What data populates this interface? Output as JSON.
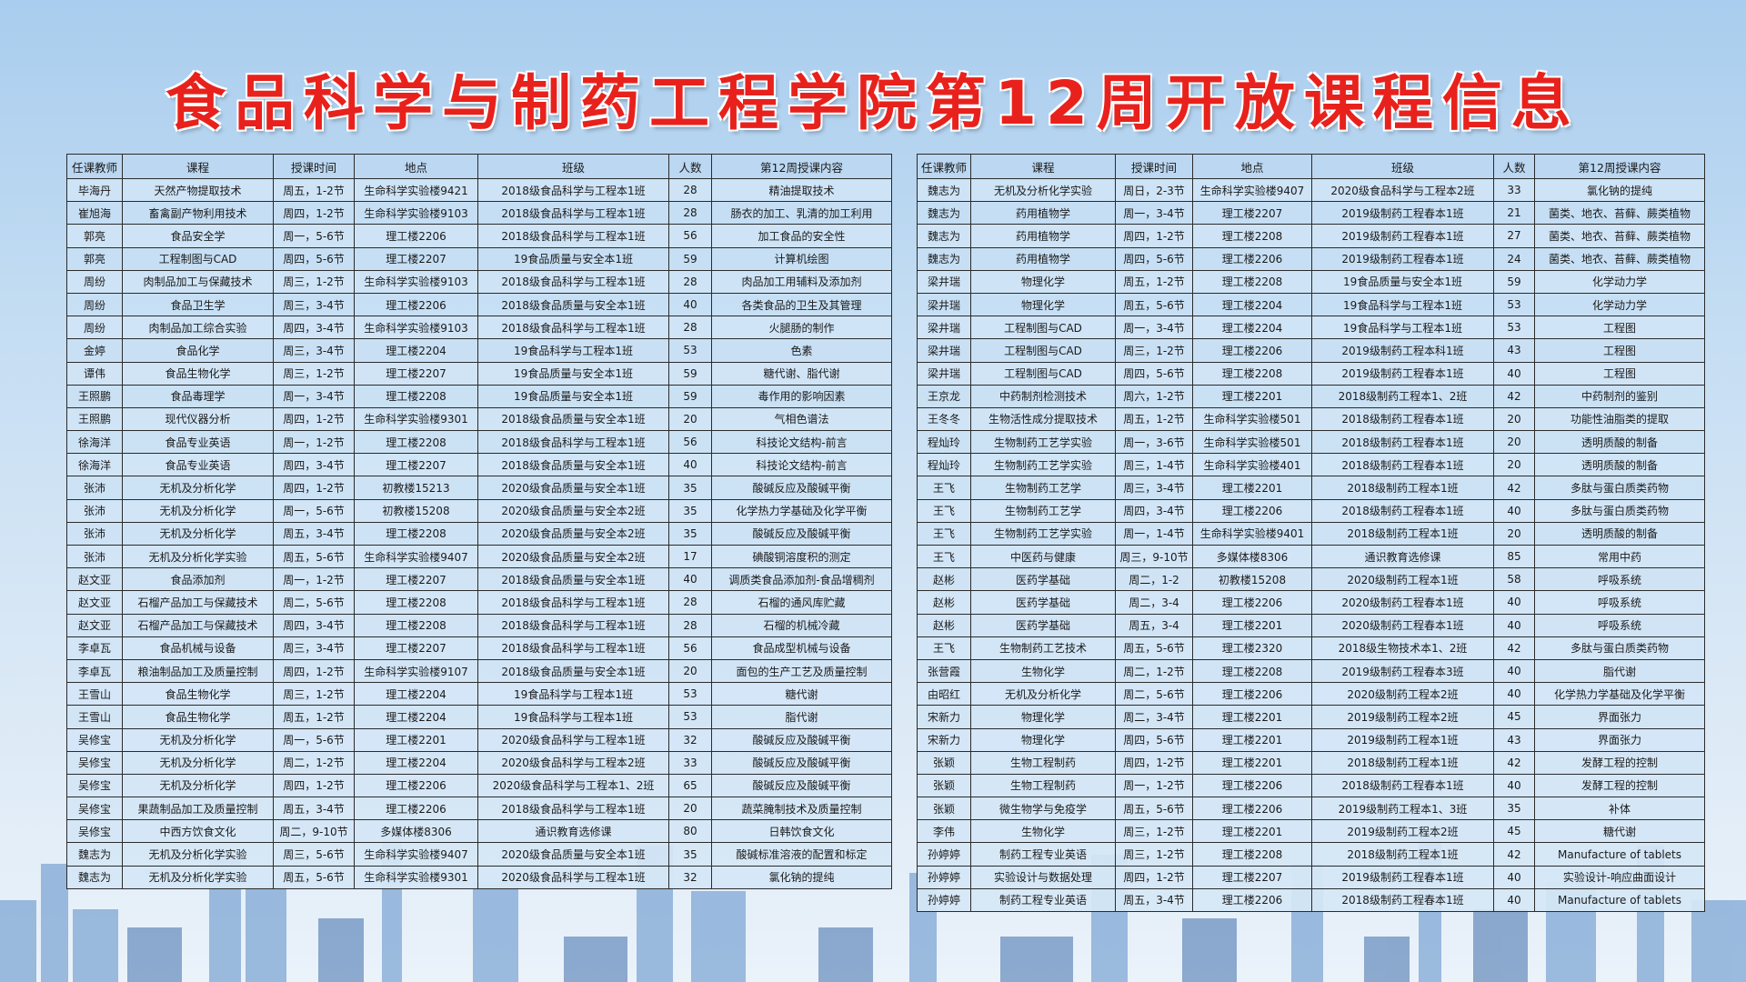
{
  "title": "食品科学与制药工程学院第12周开放课程信息",
  "colors": {
    "title": "#e8211c",
    "background": "#c6def3",
    "table_border": "#2b2b2b"
  },
  "columns": [
    "任课教师",
    "课程",
    "授课时间",
    "地点",
    "班级",
    "人数",
    "第12周授课内容"
  ],
  "left_table": [
    [
      "毕海丹",
      "天然产物提取技术",
      "周五，1-2节",
      "生命科学实验楼9421",
      "2018级食品科学与工程本1班",
      "28",
      "精油提取技术"
    ],
    [
      "崔旭海",
      "畜禽副产物利用技术",
      "周四，1-2节",
      "生命科学实验楼9103",
      "2018级食品科学与工程本1班",
      "28",
      "肠衣的加工、乳清的加工利用"
    ],
    [
      "郭亮",
      "食品安全学",
      "周一，5-6节",
      "理工楼2206",
      "2018级食品科学与工程本1班",
      "56",
      "加工食品的安全性"
    ],
    [
      "郭亮",
      "工程制图与CAD",
      "周四，5-6节",
      "理工楼2207",
      "19食品质量与安全本1班",
      "59",
      "计算机绘图"
    ],
    [
      "周纷",
      "肉制品加工与保藏技术",
      "周三，1-2节",
      "生命科学实验楼9103",
      "2018级食品科学与工程本1班",
      "28",
      "肉品加工用辅料及添加剂"
    ],
    [
      "周纷",
      "食品卫生学",
      "周三，3-4节",
      "理工楼2206",
      "2018级食品质量与安全本1班",
      "40",
      "各类食品的卫生及其管理"
    ],
    [
      "周纷",
      "肉制品加工综合实验",
      "周四，3-4节",
      "生命科学实验楼9103",
      "2018级食品科学与工程本1班",
      "28",
      "火腿肠的制作"
    ],
    [
      "金婷",
      "食品化学",
      "周三，3-4节",
      "理工楼2204",
      "19食品科学与工程本1班",
      "53",
      "色素"
    ],
    [
      "谭伟",
      "食品生物化学",
      "周三，1-2节",
      "理工楼2207",
      "19食品质量与安全本1班",
      "59",
      "糖代谢、脂代谢"
    ],
    [
      "王照鹏",
      "食品毒理学",
      "周一，3-4节",
      "理工楼2208",
      "19食品质量与安全本1班",
      "59",
      "毒作用的影响因素"
    ],
    [
      "王照鹏",
      "现代仪器分析",
      "周四，1-2节",
      "生命科学实验楼9301",
      "2018级食品质量与安全本1班",
      "20",
      "气相色谱法"
    ],
    [
      "徐海洋",
      "食品专业英语",
      "周一，1-2节",
      "理工楼2208",
      "2018级食品科学与工程本1班",
      "56",
      "科技论文结构-前言"
    ],
    [
      "徐海洋",
      "食品专业英语",
      "周四，3-4节",
      "理工楼2207",
      "2018级食品质量与安全本1班",
      "40",
      "科技论文结构-前言"
    ],
    [
      "张沛",
      "无机及分析化学",
      "周四，1-2节",
      "初教楼15213",
      "2020级食品质量与安全本1班",
      "35",
      "酸碱反应及酸碱平衡"
    ],
    [
      "张沛",
      "无机及分析化学",
      "周一，5-6节",
      "初教楼15208",
      "2020级食品质量与安全本2班",
      "35",
      "化学热力学基础及化学平衡"
    ],
    [
      "张沛",
      "无机及分析化学",
      "周五，3-4节",
      "理工楼2208",
      "2020级食品质量与安全本2班",
      "35",
      "酸碱反应及酸碱平衡"
    ],
    [
      "张沛",
      "无机及分析化学实验",
      "周五，5-6节",
      "生命科学实验楼9407",
      "2020级食品质量与安全本2班",
      "17",
      "碘酸铜溶度积的测定"
    ],
    [
      "赵文亚",
      "食品添加剂",
      "周一，1-2节",
      "理工楼2207",
      "2018级食品质量与安全本1班",
      "40",
      "调质类食品添加剂-食品增稠剂"
    ],
    [
      "赵文亚",
      "石榴产品加工与保藏技术",
      "周二，5-6节",
      "理工楼2208",
      "2018级食品科学与工程本1班",
      "28",
      "石榴的通风库贮藏"
    ],
    [
      "赵文亚",
      "石榴产品加工与保藏技术",
      "周四，3-4节",
      "理工楼2208",
      "2018级食品科学与工程本1班",
      "28",
      "石榴的机械冷藏"
    ],
    [
      "李卓瓦",
      "食品机械与设备",
      "周三，3-4节",
      "理工楼2207",
      "2018级食品科学与工程本1班",
      "56",
      "食品成型机械与设备"
    ],
    [
      "李卓瓦",
      "粮油制品加工及质量控制",
      "周四，1-2节",
      "生命科学实验楼9107",
      "2018级食品质量与安全本1班",
      "20",
      "面包的生产工艺及质量控制"
    ],
    [
      "王雪山",
      "食品生物化学",
      "周三，1-2节",
      "理工楼2204",
      "19食品科学与工程本1班",
      "53",
      "糖代谢"
    ],
    [
      "王雪山",
      "食品生物化学",
      "周五，1-2节",
      "理工楼2204",
      "19食品科学与工程本1班",
      "53",
      "脂代谢"
    ],
    [
      "吴修宝",
      "无机及分析化学",
      "周一，5-6节",
      "理工楼2201",
      "2020级食品科学与工程本1班",
      "32",
      "酸碱反应及酸碱平衡"
    ],
    [
      "吴修宝",
      "无机及分析化学",
      "周二，1-2节",
      "理工楼2204",
      "2020级食品科学与工程本2班",
      "33",
      "酸碱反应及酸碱平衡"
    ],
    [
      "吴修宝",
      "无机及分析化学",
      "周四，1-2节",
      "理工楼2206",
      "2020级食品科学与工程本1、2班",
      "65",
      "酸碱反应及酸碱平衡"
    ],
    [
      "吴修宝",
      "果蔬制品加工及质量控制",
      "周五，3-4节",
      "理工楼2206",
      "2018级食品科学与工程本1班",
      "20",
      "蔬菜腌制技术及质量控制"
    ],
    [
      "吴修宝",
      "中西方饮食文化",
      "周二，9-10节",
      "多媒体楼8306",
      "通识教育选修课",
      "80",
      "日韩饮食文化"
    ],
    [
      "魏志为",
      "无机及分析化学实验",
      "周三，5-6节",
      "生命科学实验楼9407",
      "2020级食品质量与安全本1班",
      "35",
      "酸碱标准溶液的配置和标定"
    ],
    [
      "魏志为",
      "无机及分析化学实验",
      "周五，5-6节",
      "生命科学实验楼9301",
      "2020级食品科学与工程本1班",
      "32",
      "氯化钠的提纯"
    ]
  ],
  "right_table": [
    [
      "魏志为",
      "无机及分析化学实验",
      "周日，2-3节",
      "生命科学实验楼9407",
      "2020级食品科学与工程本2班",
      "33",
      "氯化钠的提纯"
    ],
    [
      "魏志为",
      "药用植物学",
      "周一，3-4节",
      "理工楼2207",
      "2019级制药工程春本1班",
      "21",
      "菌类、地衣、苔藓、蕨类植物"
    ],
    [
      "魏志为",
      "药用植物学",
      "周四，1-2节",
      "理工楼2208",
      "2019级制药工程春本1班",
      "27",
      "菌类、地衣、苔藓、蕨类植物"
    ],
    [
      "魏志为",
      "药用植物学",
      "周四，5-6节",
      "理工楼2206",
      "2019级制药工程春本1班",
      "24",
      "菌类、地衣、苔藓、蕨类植物"
    ],
    [
      "梁井瑞",
      "物理化学",
      "周五，1-2节",
      "理工楼2208",
      "19食品质量与安全本1班",
      "59",
      "化学动力学"
    ],
    [
      "梁井瑞",
      "物理化学",
      "周五，5-6节",
      "理工楼2204",
      "19食品科学与工程本1班",
      "53",
      "化学动力学"
    ],
    [
      "梁井瑞",
      "工程制图与CAD",
      "周一，3-4节",
      "理工楼2204",
      "19食品科学与工程本1班",
      "53",
      "工程图"
    ],
    [
      "梁井瑞",
      "工程制图与CAD",
      "周三，1-2节",
      "理工楼2206",
      "2019级制药工程本科1班",
      "43",
      "工程图"
    ],
    [
      "梁井瑞",
      "工程制图与CAD",
      "周四，5-6节",
      "理工楼2208",
      "2019级制药工程春本1班",
      "40",
      "工程图"
    ],
    [
      "王京龙",
      "中药制剂检测技术",
      "周六，1-2节",
      "理工楼2201",
      "2018级制药工程本1、2班",
      "42",
      "中药制剂的鉴别"
    ],
    [
      "王冬冬",
      "生物活性成分提取技术",
      "周五，1-2节",
      "生命科学实验楼501",
      "2018级制药工程春本1班",
      "20",
      "功能性油脂类的提取"
    ],
    [
      "程灿玲",
      "生物制药工艺学实验",
      "周一，3-6节",
      "生命科学实验楼501",
      "2018级制药工程春本1班",
      "20",
      "透明质酸的制备"
    ],
    [
      "程灿玲",
      "生物制药工艺学实验",
      "周三，1-4节",
      "生命科学实验楼401",
      "2018级制药工程春本1班",
      "20",
      "透明质酸的制备"
    ],
    [
      "王飞",
      "生物制药工艺学",
      "周三，3-4节",
      "理工楼2201",
      "2018级制药工程本1班",
      "42",
      "多肽与蛋白质类药物"
    ],
    [
      "王飞",
      "生物制药工艺学",
      "周四，3-4节",
      "理工楼2206",
      "2018级制药工程春本1班",
      "40",
      "多肽与蛋白质类药物"
    ],
    [
      "王飞",
      "生物制药工艺学实验",
      "周一，1-4节",
      "生命科学实验楼9401",
      "2018级制药工程本1班",
      "20",
      "透明质酸的制备"
    ],
    [
      "王飞",
      "中医药与健康",
      "周三，9-10节",
      "多媒体楼8306",
      "通识教育选修课",
      "85",
      "常用中药"
    ],
    [
      "赵彬",
      "医药学基础",
      "周二，1-2",
      "初教楼15208",
      "2020级制药工程本1班",
      "58",
      "呼吸系统"
    ],
    [
      "赵彬",
      "医药学基础",
      "周二，3-4",
      "理工楼2206",
      "2020级制药工程春本1班",
      "40",
      "呼吸系统"
    ],
    [
      "赵彬",
      "医药学基础",
      "周五，3-4",
      "理工楼2201",
      "2020级制药工程春本1班",
      "40",
      "呼吸系统"
    ],
    [
      "王飞",
      "生物制药工艺技术",
      "周五，5-6节",
      "理工楼2320",
      "2018级生物技术本1、2班",
      "42",
      "多肽与蛋白质类药物"
    ],
    [
      "张营霞",
      "生物化学",
      "周二，1-2节",
      "理工楼2208",
      "2019级制药工程春本3班",
      "40",
      "脂代谢"
    ],
    [
      "由昭红",
      "无机及分析化学",
      "周二，5-6节",
      "理工楼2206",
      "2020级制药工程本2班",
      "40",
      "化学热力学基础及化学平衡"
    ],
    [
      "宋新力",
      "物理化学",
      "周二，3-4节",
      "理工楼2201",
      "2019级制药工程本2班",
      "45",
      "界面张力"
    ],
    [
      "宋新力",
      "物理化学",
      "周四，5-6节",
      "理工楼2201",
      "2019级制药工程本1班",
      "43",
      "界面张力"
    ],
    [
      "张颖",
      "生物工程制药",
      "周四，1-2节",
      "理工楼2201",
      "2018级制药工程本1班",
      "42",
      "发酵工程的控制"
    ],
    [
      "张颖",
      "生物工程制药",
      "周一，1-2节",
      "理工楼2206",
      "2018级制药工程春本1班",
      "40",
      "发酵工程的控制"
    ],
    [
      "张颖",
      "微生物学与免疫学",
      "周五，5-6节",
      "理工楼2206",
      "2019级制药工程本1、3班",
      "35",
      "补体"
    ],
    [
      "李伟",
      "生物化学",
      "周三，1-2节",
      "理工楼2201",
      "2019级制药工程本2班",
      "45",
      "糖代谢"
    ],
    [
      "孙婷婷",
      "制药工程专业英语",
      "周三，1-2节",
      "理工楼2208",
      "2018级制药工程本1班",
      "42",
      "Manufacture of tablets"
    ],
    [
      "孙婷婷",
      "实验设计与数据处理",
      "周四，1-2节",
      "理工楼2207",
      "2019级制药工程春本1班",
      "40",
      "实验设计-响应曲面设计"
    ],
    [
      "孙婷婷",
      "制药工程专业英语",
      "周五，3-4节",
      "理工楼2206",
      "2018级制药工程春本1班",
      "40",
      "Manufacture of tablets"
    ]
  ]
}
